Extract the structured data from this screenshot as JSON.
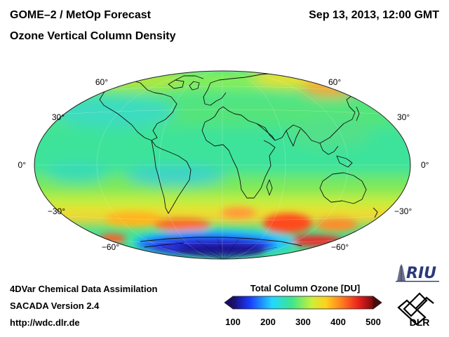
{
  "header": {
    "title": "GOME–2 / MetOp Forecast",
    "subtitle": "Ozone Vertical Column Density",
    "datetime": "Sep 13, 2013, 12:00 GMT"
  },
  "map": {
    "projection": "hammer-aitoff",
    "latitude_labels_left": [
      "60°",
      "30°",
      "0°",
      "−30°",
      "−60°"
    ],
    "latitude_labels_right": [
      "60°",
      "30°",
      "0°",
      "−30°",
      "−60°"
    ],
    "colors": {
      "background": "#3de39a",
      "ozone_hole": "#2a1fb8",
      "high_ozone": "#ff6a2a",
      "coastline": "#111111"
    }
  },
  "colorbar": {
    "title": "Total Column Ozone [DU]",
    "ticks": [
      "100",
      "200",
      "300",
      "400",
      "500"
    ],
    "range": [
      100,
      500
    ],
    "colors": [
      "#1a0a6e",
      "#1a3cff",
      "#22d8ff",
      "#3ee68c",
      "#c8f03a",
      "#ffd21e",
      "#ff7a1e",
      "#e81e1e",
      "#7a0a0a"
    ]
  },
  "footer": {
    "line1": "4DVar Chemical Data Assimilation",
    "line2": "SACADA Version 2.4",
    "line3": "http://wdc.dlr.de"
  },
  "logos": {
    "riu_text": "RIU",
    "dlr_text": "DLR"
  }
}
